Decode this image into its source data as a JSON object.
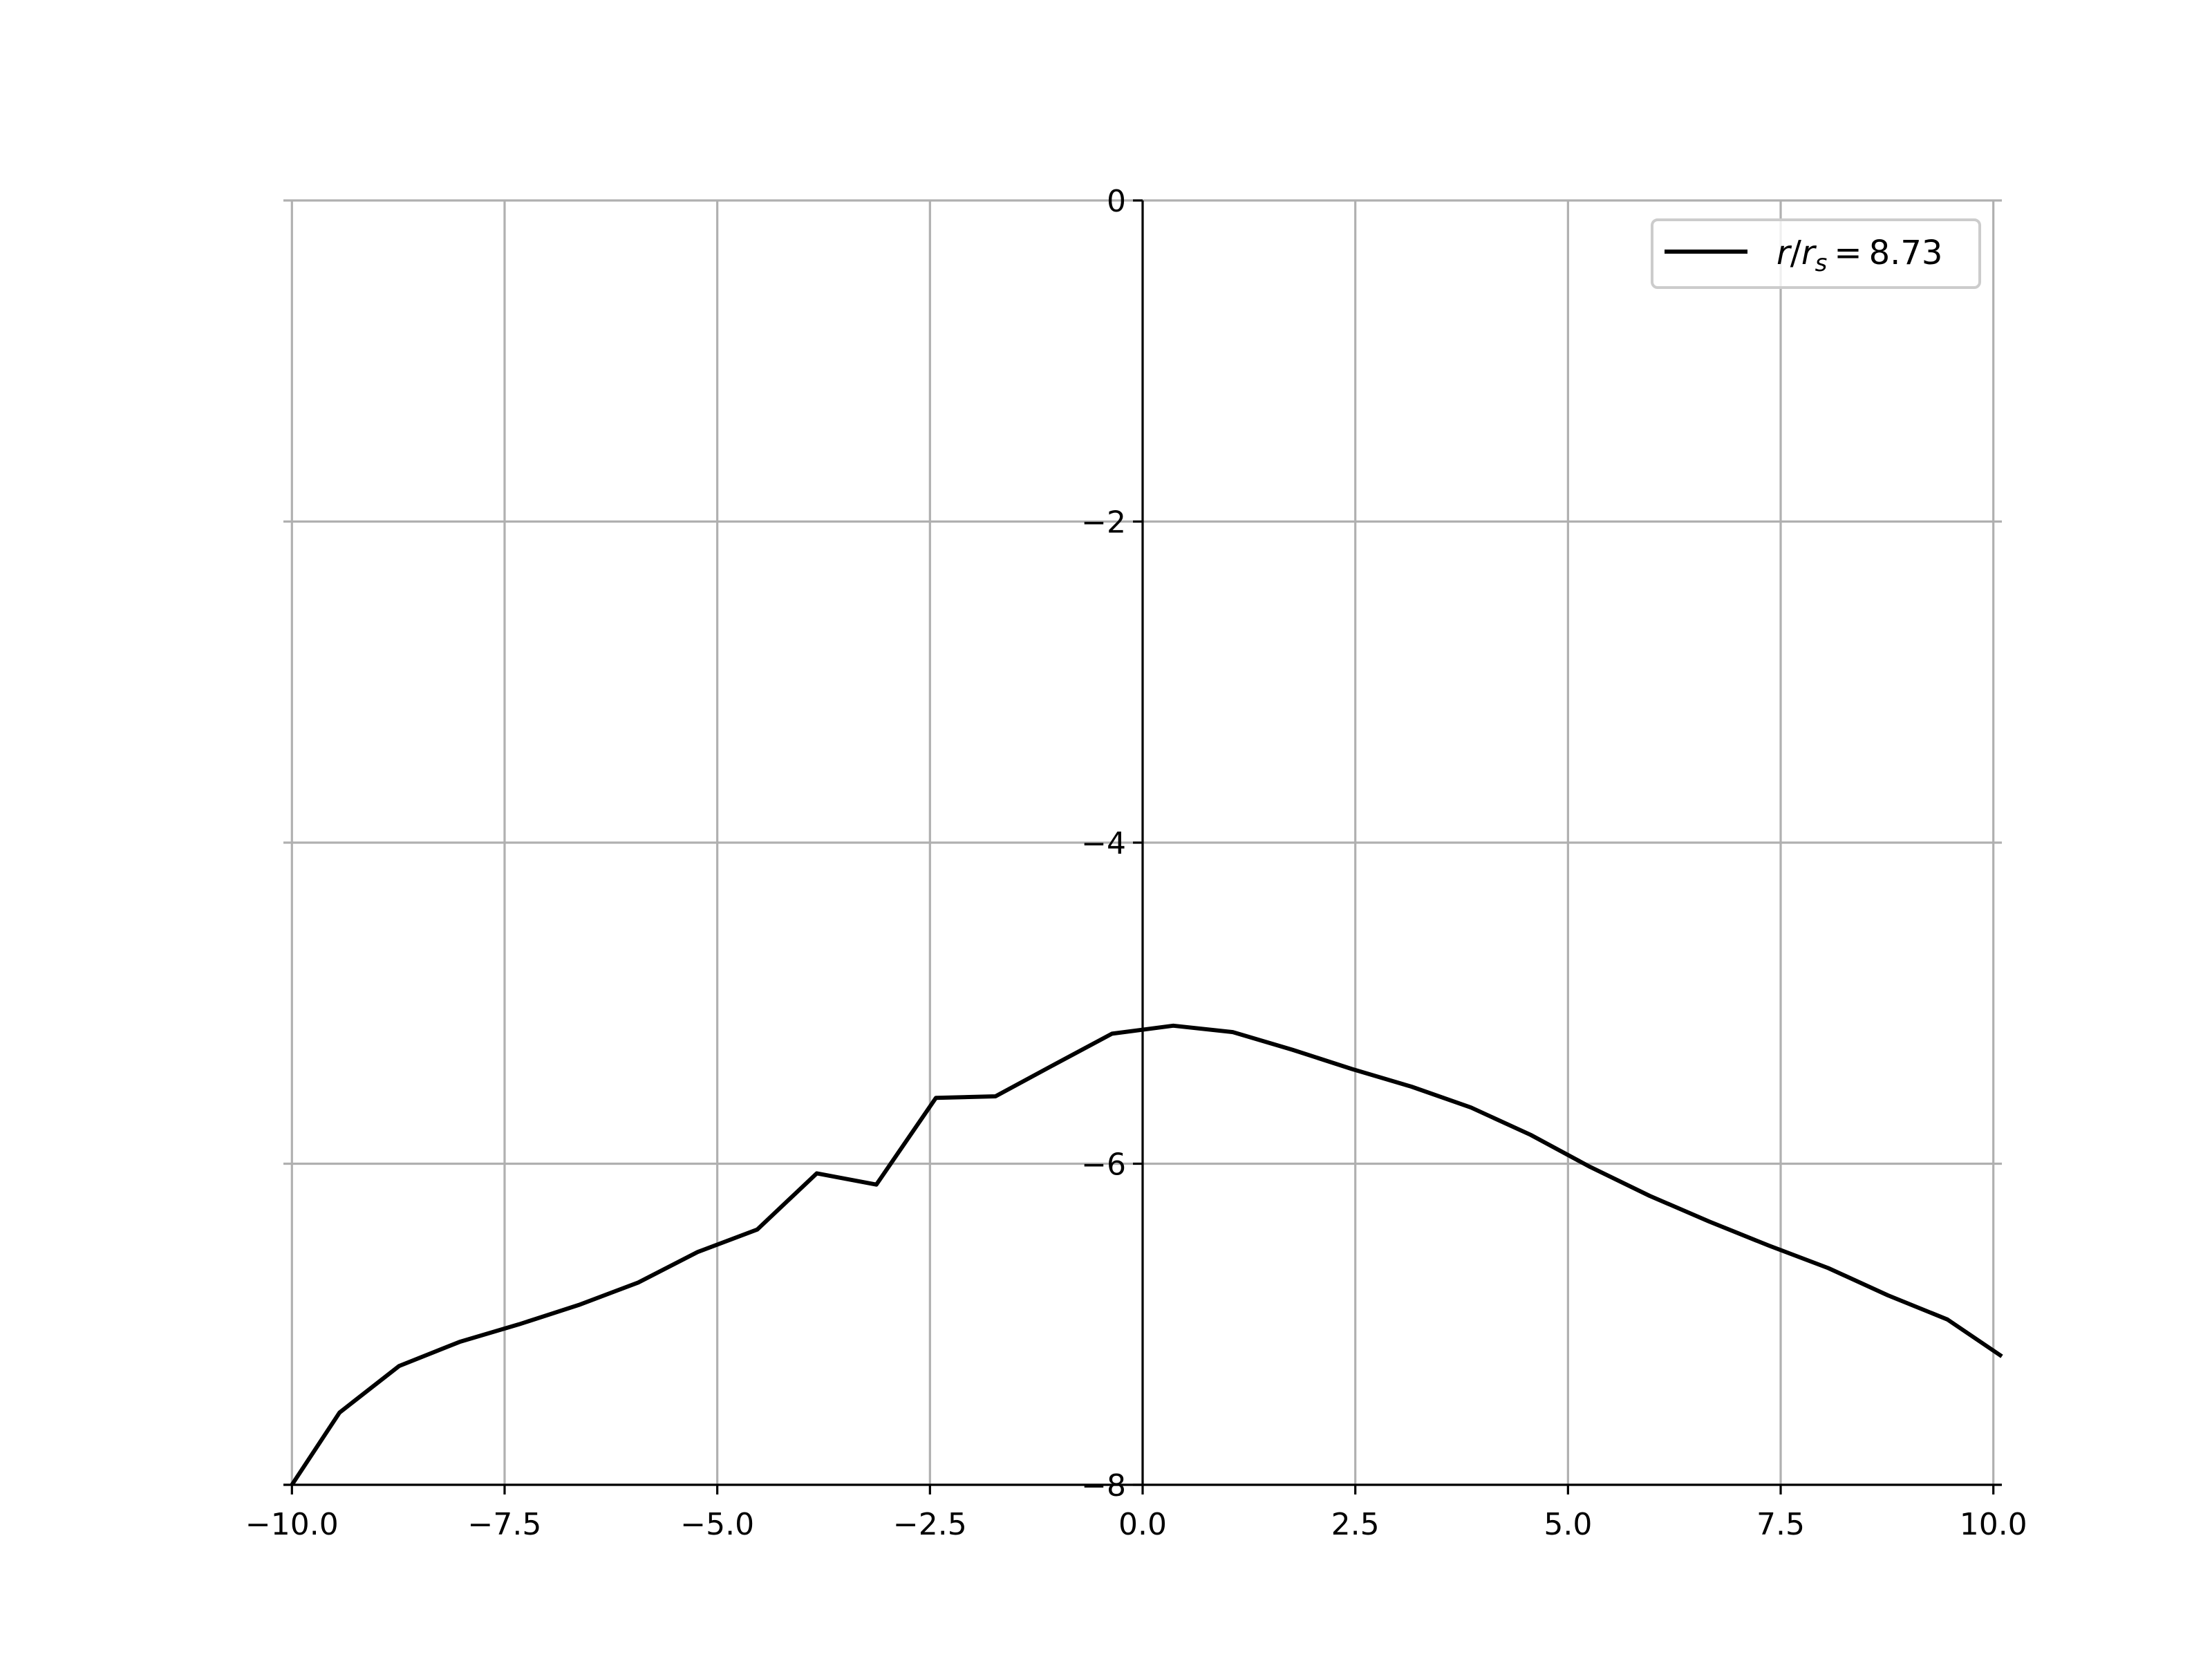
{
  "chart_data": {
    "type": "line",
    "title": "",
    "xlabel": "",
    "ylabel": "",
    "xlim": [
      -10.1,
      10.1
    ],
    "ylim": [
      -8,
      0
    ],
    "x_ticks": [
      -10.0,
      -7.5,
      -5.0,
      -2.5,
      0.0,
      2.5,
      5.0,
      7.5,
      10.0
    ],
    "x_tick_labels": [
      "−10.0",
      "−7.5",
      "−5.0",
      "−2.5",
      "0.0",
      "2.5",
      "5.0",
      "7.5",
      "10.0"
    ],
    "y_ticks": [
      0,
      -2,
      -4,
      -6,
      -8
    ],
    "y_tick_labels": [
      "0",
      "−2",
      "−4",
      "−6",
      "−8"
    ],
    "grid": true,
    "spines": "centered y-axis at x=0, x-axis at bottom",
    "legend": {
      "placement": "top-right",
      "label": {
        "r": "r",
        "slash": "/",
        "r_sub_base": "r",
        "sub": "s",
        "equals": "=",
        "value": "8.73"
      }
    },
    "series": [
      {
        "name": "r/r_s = 8.73",
        "color": "#000000",
        "x": [
          -10.0,
          -9.44,
          -8.74,
          -8.03,
          -7.33,
          -6.63,
          -5.93,
          -5.23,
          -4.53,
          -3.83,
          -3.13,
          -2.43,
          -1.73,
          -1.03,
          -0.36,
          0.36,
          1.06,
          1.76,
          2.46,
          3.16,
          3.86,
          4.56,
          5.26,
          5.96,
          6.66,
          7.36,
          8.06,
          8.76,
          9.46,
          10.1
        ],
        "y": [
          -8.0,
          -7.55,
          -7.26,
          -7.11,
          -7.0,
          -6.88,
          -6.74,
          -6.55,
          -6.41,
          -6.06,
          -6.13,
          -5.59,
          -5.58,
          -5.38,
          -5.19,
          -5.14,
          -5.18,
          -5.29,
          -5.41,
          -5.52,
          -5.65,
          -5.82,
          -6.02,
          -6.2,
          -6.36,
          -6.51,
          -6.65,
          -6.82,
          -6.97,
          -7.2
        ]
      }
    ]
  }
}
